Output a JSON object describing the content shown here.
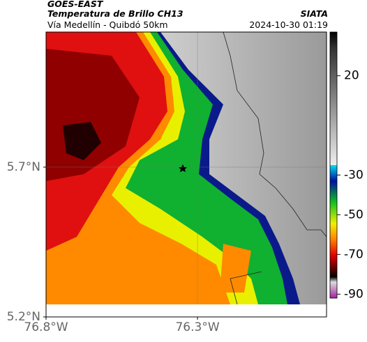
{
  "header": {
    "satellite": "GOES-EAST",
    "product": "Temperatura de Brillo CH13",
    "route": "Vía Medellín - Quibdó 50km",
    "source": "SIATA",
    "datetime": "2024-10-30 01:19"
  },
  "map": {
    "xlim": [
      -76.8,
      -75.874
    ],
    "ylim": [
      5.2,
      6.151
    ],
    "xticks": [
      {
        "value": -76.8,
        "label": "76.8°W"
      },
      {
        "value": -76.3,
        "label": "76.3°W"
      }
    ],
    "yticks": [
      {
        "value": 5.7,
        "label": "5.7°N"
      },
      {
        "value": 5.2,
        "label": "5.2°N"
      }
    ],
    "grid": true
  },
  "colorbar": {
    "lim": [
      42,
      -92
    ],
    "ticks": [
      20,
      -30,
      -50,
      -70,
      -90
    ]
  }
}
